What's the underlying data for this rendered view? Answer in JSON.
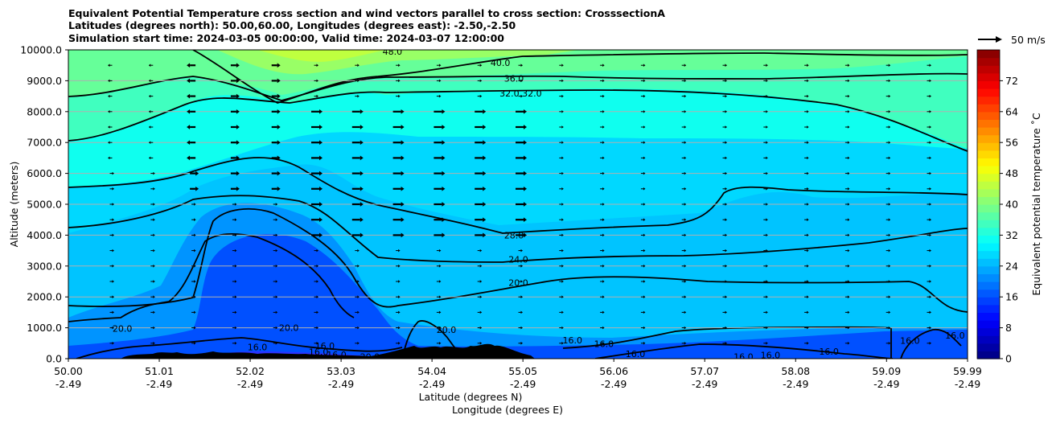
{
  "figure": {
    "title_lines": [
      "Equivalent Potential Temperature cross section and wind vectors parallel to cross section: CrosssectionA",
      "Latitudes (degrees north): 50.00,60.00, Longitudes (degrees east): -2.50,-2.50",
      "Simulation start time: 2024-03-05 00:00:00, Valid time: 2024-03-07 12:00:00"
    ],
    "quiver_key_label": "50 m/s"
  },
  "chart_data": {
    "type": "heatmap",
    "ylabel": "Altitude (meters)",
    "xlabel_lines": [
      "Latitude (degrees N)",
      "Longitude (degrees E)"
    ],
    "ylim": [
      0,
      10000
    ],
    "xlim": [
      50.0,
      59.99
    ],
    "y_ticks": [
      "0.0",
      "1000.0",
      "2000.0",
      "3000.0",
      "4000.0",
      "5000.0",
      "6000.0",
      "7000.0",
      "8000.0",
      "9000.0",
      "10000.0"
    ],
    "y_tick_values": [
      0,
      1000,
      2000,
      3000,
      4000,
      5000,
      6000,
      7000,
      8000,
      9000,
      10000
    ],
    "x_tick_values": [
      50.0,
      51.01,
      52.02,
      53.03,
      54.04,
      55.05,
      56.06,
      57.07,
      58.08,
      59.09,
      59.99
    ],
    "x_tick_labels": [
      [
        "50.00",
        "-2.49"
      ],
      [
        "51.01",
        "-2.49"
      ],
      [
        "52.02",
        "-2.49"
      ],
      [
        "53.03",
        "-2.49"
      ],
      [
        "54.04",
        "-2.49"
      ],
      [
        "55.05",
        "-2.49"
      ],
      [
        "56.06",
        "-2.49"
      ],
      [
        "57.07",
        "-2.49"
      ],
      [
        "58.08",
        "-2.49"
      ],
      [
        "59.09",
        "-2.49"
      ],
      [
        "59.99",
        "-2.49"
      ]
    ],
    "horizontal_grid": true,
    "colorbar": {
      "label": "Equivalent potential temperature ˚C",
      "min": 0,
      "max": 80,
      "ticks": [
        0,
        8,
        16,
        24,
        32,
        40,
        48,
        56,
        64,
        72
      ],
      "colormap": "jet"
    },
    "contour_labels": [
      {
        "text": "48.0",
        "x": 53.6,
        "y": 9950
      },
      {
        "text": "40.0",
        "x": 54.8,
        "y": 9580
      },
      {
        "text": "36.0",
        "x": 54.95,
        "y": 9080
      },
      {
        "text": "32.0",
        "x": 54.9,
        "y": 8600
      },
      {
        "text": "32.0",
        "x": 55.15,
        "y": 8600
      },
      {
        "text": "28.0",
        "x": 54.95,
        "y": 4000
      },
      {
        "text": "24.0",
        "x": 55.0,
        "y": 3220
      },
      {
        "text": "20.0",
        "x": 55.0,
        "y": 2460
      },
      {
        "text": "20.0",
        "x": 50.6,
        "y": 980
      },
      {
        "text": "20.0",
        "x": 52.45,
        "y": 1000
      },
      {
        "text": "20.0",
        "x": 54.2,
        "y": 940
      },
      {
        "text": "20.0",
        "x": 53.35,
        "y": 60
      },
      {
        "text": "16.0",
        "x": 51.65,
        "y": 80
      },
      {
        "text": "16.0",
        "x": 52.1,
        "y": 380
      },
      {
        "text": "16.0",
        "x": 52.85,
        "y": 420
      },
      {
        "text": "16.0",
        "x": 52.98,
        "y": 130
      },
      {
        "text": "16.0",
        "x": 52.78,
        "y": 220
      },
      {
        "text": "16.0",
        "x": 55.6,
        "y": 600
      },
      {
        "text": "16.0",
        "x": 55.95,
        "y": 480
      },
      {
        "text": "16.0",
        "x": 56.3,
        "y": 160
      },
      {
        "text": "16.0",
        "x": 57.5,
        "y": 60
      },
      {
        "text": "16.0",
        "x": 57.8,
        "y": 120
      },
      {
        "text": "16.0",
        "x": 58.45,
        "y": 240
      },
      {
        "text": "16.0",
        "x": 59.35,
        "y": 580
      },
      {
        "text": "16.0",
        "x": 59.85,
        "y": 750
      }
    ]
  }
}
